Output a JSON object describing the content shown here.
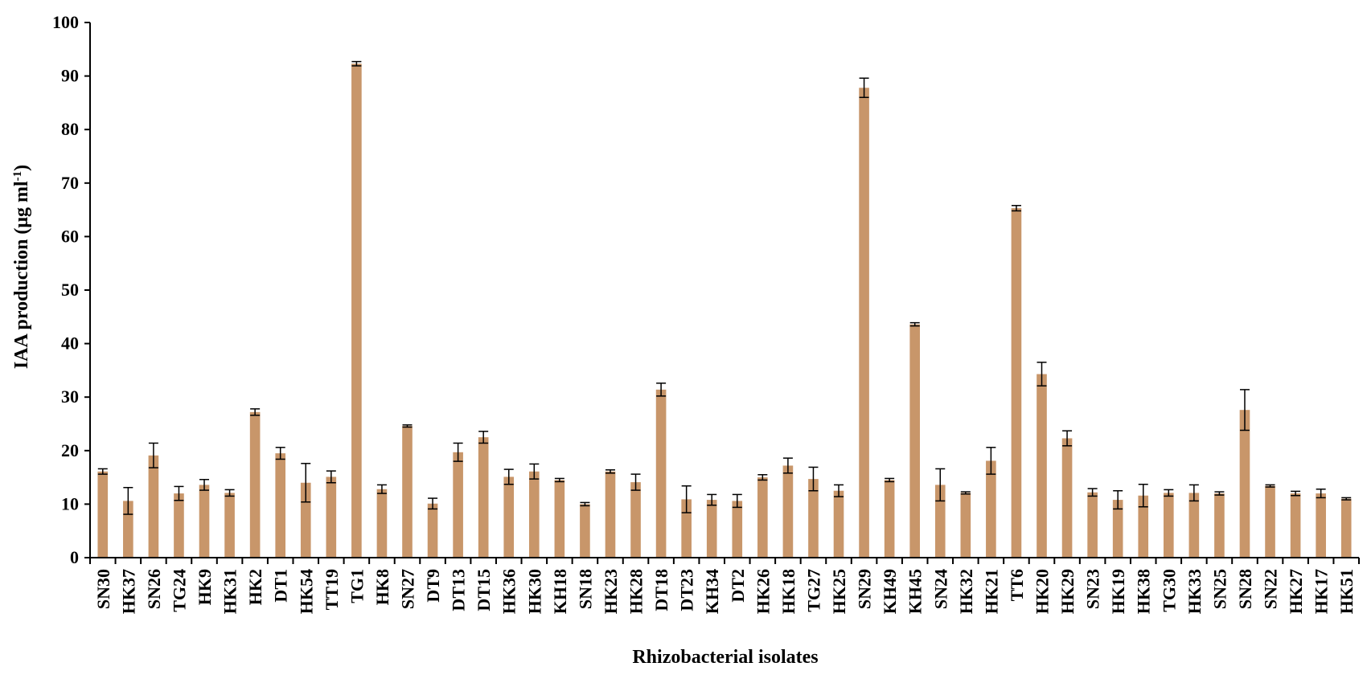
{
  "chart_data": {
    "type": "bar",
    "title": "",
    "xlabel": "Rhizobacterial isolates",
    "ylabel": {
      "main": "IAA production (μg ml",
      "superscript": "-1",
      "close": ")"
    },
    "ylim": [
      0,
      100
    ],
    "yticks": [
      0,
      10,
      20,
      30,
      40,
      50,
      60,
      70,
      80,
      90,
      100
    ],
    "grid": false,
    "legend": "none",
    "bar_color": "#c8966a",
    "error_bar_color": "#000000",
    "categories": [
      "SN30",
      "HK37",
      "SN26",
      "TG24",
      "HK9",
      "HK31",
      "HK2",
      "DT1",
      "HK54",
      "TT19",
      "TG1",
      "HK8",
      "SN27",
      "DT9",
      "DT13",
      "DT15",
      "HK36",
      "HK30",
      "KH18",
      "SN18",
      "HK23",
      "HK28",
      "DT18",
      "DT23",
      "KH34",
      "DT2",
      "HK26",
      "HK18",
      "TG27",
      "HK25",
      "SN29",
      "KH49",
      "KH45",
      "SN24",
      "HK32",
      "HK21",
      "TT6",
      "HK20",
      "HK29",
      "SN23",
      "HK19",
      "HK38",
      "TG30",
      "HK33",
      "SN25",
      "SN28",
      "SN22",
      "HK27",
      "HK17",
      "HK51"
    ],
    "values": [
      16.1,
      10.6,
      19.1,
      12.0,
      13.6,
      12.1,
      27.2,
      19.5,
      14.0,
      15.1,
      92.3,
      12.8,
      24.6,
      10.1,
      19.7,
      22.5,
      15.1,
      16.1,
      14.5,
      10.0,
      16.1,
      14.1,
      31.4,
      10.9,
      10.8,
      10.6,
      15.0,
      17.2,
      14.7,
      12.5,
      87.8,
      14.5,
      43.6,
      13.6,
      12.1,
      18.1,
      65.3,
      34.3,
      22.3,
      12.2,
      10.8,
      11.6,
      12.1,
      12.1,
      12.0,
      27.6,
      13.4,
      12.0,
      12.0,
      11.0
    ],
    "errors": [
      0.5,
      2.5,
      2.3,
      1.3,
      1.0,
      0.6,
      0.6,
      1.1,
      3.6,
      1.1,
      0.4,
      0.8,
      0.2,
      1.0,
      1.7,
      1.1,
      1.4,
      1.4,
      0.3,
      0.3,
      0.3,
      1.5,
      1.2,
      2.5,
      1.0,
      1.2,
      0.5,
      1.4,
      2.2,
      1.1,
      1.8,
      0.3,
      0.3,
      3.0,
      0.2,
      2.5,
      0.5,
      2.2,
      1.4,
      0.7,
      1.7,
      2.1,
      0.6,
      1.5,
      0.3,
      3.8,
      0.2,
      0.4,
      0.8,
      0.2
    ]
  }
}
